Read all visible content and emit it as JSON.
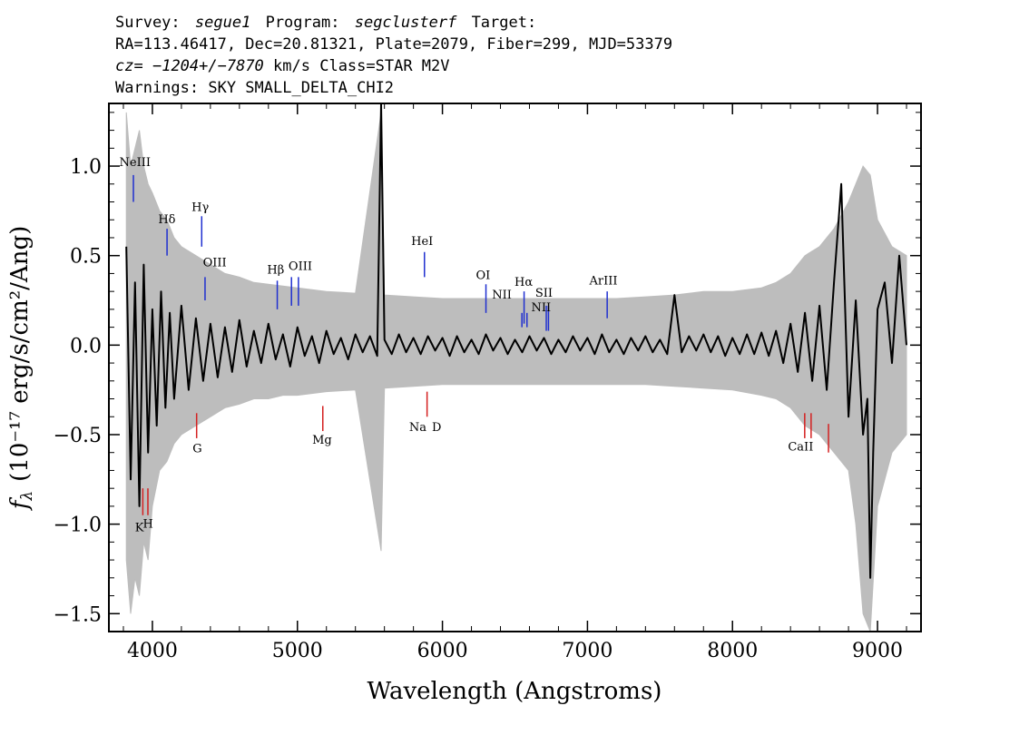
{
  "header": {
    "line1": {
      "survey_label": "Survey:",
      "survey_value": "segue1",
      "program_label": "Program:",
      "program_value": "segclusterf",
      "target_label": "Target:"
    },
    "line2": "RA=113.46417, Dec=20.81321, Plate=2079, Fiber=299, MJD=53379",
    "line3": {
      "cz_label": "cz=",
      "cz_value": "−1204+/−7870",
      "rest": " km/s Class=STAR M2V"
    },
    "line4": "Warnings: SKY SMALL_DELTA_CHI2"
  },
  "chart_data": {
    "type": "line",
    "xlabel": "Wavelength (Angstroms)",
    "ylabel": "f",
    "ylabel_sub": "λ",
    "ylabel_units": "(10⁻¹⁷ erg/s/cm²/Ang)",
    "xlim": [
      3700,
      9300
    ],
    "ylim": [
      -1.6,
      1.35
    ],
    "x_ticks": [
      4000,
      5000,
      6000,
      7000,
      8000,
      9000
    ],
    "y_ticks": [
      -1.5,
      -1.0,
      -0.5,
      0.0,
      0.5,
      1.0
    ],
    "x_tick_labels": [
      "4000",
      "5000",
      "6000",
      "7000",
      "8000",
      "9000"
    ],
    "y_tick_labels": [
      "−1.5",
      "−1.0",
      "−0.5",
      "0.0",
      "0.5",
      "1.0"
    ],
    "grid": false,
    "legend": "none",
    "colors": {
      "flux": "#000000",
      "error_band": "#bdbdbd",
      "emission_marker": "#1f2fd0",
      "absorption_marker": "#d42020"
    },
    "series": [
      {
        "role": "flux",
        "color": "#000000",
        "x": [
          3820,
          3850,
          3880,
          3910,
          3940,
          3970,
          4000,
          4030,
          4060,
          4090,
          4120,
          4150,
          4200,
          4250,
          4300,
          4350,
          4400,
          4450,
          4500,
          4550,
          4600,
          4650,
          4700,
          4750,
          4800,
          4850,
          4900,
          4950,
          5000,
          5050,
          5100,
          5150,
          5200,
          5250,
          5300,
          5350,
          5400,
          5450,
          5500,
          5550,
          5577,
          5600,
          5650,
          5700,
          5750,
          5800,
          5850,
          5900,
          5950,
          6000,
          6050,
          6100,
          6150,
          6200,
          6250,
          6300,
          6350,
          6400,
          6450,
          6500,
          6550,
          6600,
          6650,
          6700,
          6750,
          6800,
          6850,
          6900,
          6950,
          7000,
          7050,
          7100,
          7150,
          7200,
          7250,
          7300,
          7350,
          7400,
          7450,
          7500,
          7550,
          7600,
          7650,
          7700,
          7750,
          7800,
          7850,
          7900,
          7950,
          8000,
          8050,
          8100,
          8150,
          8200,
          8250,
          8300,
          8350,
          8400,
          8450,
          8500,
          8550,
          8600,
          8650,
          8700,
          8750,
          8800,
          8850,
          8900,
          8930,
          8950,
          8970,
          9000,
          9050,
          9100,
          9150,
          9200
        ],
        "y": [
          0.55,
          -0.75,
          0.35,
          -0.9,
          0.45,
          -0.6,
          0.2,
          -0.45,
          0.3,
          -0.35,
          0.18,
          -0.3,
          0.22,
          -0.25,
          0.15,
          -0.2,
          0.12,
          -0.18,
          0.1,
          -0.15,
          0.14,
          -0.12,
          0.08,
          -0.1,
          0.12,
          -0.08,
          0.06,
          -0.12,
          0.1,
          -0.06,
          0.05,
          -0.1,
          0.08,
          -0.05,
          0.04,
          -0.08,
          0.06,
          -0.04,
          0.05,
          -0.06,
          1.35,
          0.03,
          -0.05,
          0.06,
          -0.04,
          0.04,
          -0.05,
          0.05,
          -0.03,
          0.04,
          -0.06,
          0.05,
          -0.04,
          0.03,
          -0.05,
          0.06,
          -0.03,
          0.04,
          -0.05,
          0.03,
          -0.04,
          0.05,
          -0.03,
          0.04,
          -0.05,
          0.03,
          -0.04,
          0.05,
          -0.03,
          0.04,
          -0.05,
          0.06,
          -0.04,
          0.03,
          -0.05,
          0.04,
          -0.03,
          0.05,
          -0.04,
          0.03,
          -0.05,
          0.28,
          -0.04,
          0.05,
          -0.03,
          0.06,
          -0.04,
          0.05,
          -0.06,
          0.04,
          -0.05,
          0.06,
          -0.05,
          0.07,
          -0.06,
          0.08,
          -0.1,
          0.12,
          -0.15,
          0.18,
          -0.2,
          0.22,
          -0.25,
          0.35,
          0.9,
          -0.4,
          0.25,
          -0.5,
          -0.3,
          -1.3,
          -0.6,
          0.2,
          0.35,
          -0.1,
          0.5,
          0.0
        ]
      },
      {
        "role": "error_band",
        "color": "#bdbdbd",
        "x": [
          3820,
          3850,
          3880,
          3910,
          3940,
          3970,
          4000,
          4050,
          4100,
          4150,
          4200,
          4300,
          4400,
          4500,
          4600,
          4700,
          4800,
          4900,
          5000,
          5200,
          5400,
          5577,
          5600,
          5800,
          6000,
          6200,
          6400,
          6600,
          6800,
          7000,
          7200,
          7400,
          7600,
          7800,
          8000,
          8200,
          8300,
          8400,
          8500,
          8600,
          8700,
          8800,
          8850,
          8900,
          8950,
          9000,
          9100,
          9200
        ],
        "lower": [
          -1.2,
          -1.5,
          -1.3,
          -1.4,
          -1.1,
          -1.2,
          -0.9,
          -0.7,
          -0.65,
          -0.55,
          -0.5,
          -0.45,
          -0.4,
          -0.35,
          -0.33,
          -0.3,
          -0.3,
          -0.28,
          -0.28,
          -0.26,
          -0.25,
          -1.15,
          -0.24,
          -0.23,
          -0.22,
          -0.22,
          -0.22,
          -0.22,
          -0.22,
          -0.22,
          -0.22,
          -0.22,
          -0.23,
          -0.24,
          -0.25,
          -0.28,
          -0.3,
          -0.35,
          -0.45,
          -0.5,
          -0.6,
          -0.7,
          -1.0,
          -1.5,
          -1.6,
          -0.9,
          -0.6,
          -0.5
        ],
        "upper": [
          1.3,
          1.0,
          1.1,
          1.2,
          1.0,
          0.9,
          0.85,
          0.75,
          0.7,
          0.6,
          0.55,
          0.5,
          0.45,
          0.4,
          0.38,
          0.35,
          0.34,
          0.33,
          0.32,
          0.3,
          0.29,
          1.3,
          0.28,
          0.27,
          0.26,
          0.26,
          0.26,
          0.26,
          0.26,
          0.26,
          0.26,
          0.27,
          0.28,
          0.3,
          0.3,
          0.32,
          0.35,
          0.4,
          0.5,
          0.55,
          0.65,
          0.8,
          0.9,
          1.0,
          0.95,
          0.7,
          0.55,
          0.5
        ]
      }
    ],
    "emission_lines": [
      {
        "label": "NeIII",
        "wavelength": 3869,
        "y_from": 0.95,
        "y_to": 0.8
      },
      {
        "label": "Hδ",
        "wavelength": 4101,
        "y_from": 0.65,
        "y_to": 0.5
      },
      {
        "label": "Hγ",
        "wavelength": 4340,
        "y_from": 0.72,
        "y_to": 0.55
      },
      {
        "label": "OIII",
        "wavelength": 4363,
        "y_from": 0.38,
        "y_to": 0.25
      },
      {
        "label": "Hβ",
        "wavelength": 4861,
        "y_from": 0.36,
        "y_to": 0.2
      },
      {
        "label": "OIII",
        "wavelength": 4959,
        "y_from": 0.38,
        "y_to": 0.22
      },
      {
        "label": "OIII",
        "wavelength": 5007,
        "y_from": 0.38,
        "y_to": 0.22
      },
      {
        "label": "HeI",
        "wavelength": 5876,
        "y_from": 0.52,
        "y_to": 0.38
      },
      {
        "label": "OI",
        "wavelength": 6300,
        "y_from": 0.34,
        "y_to": 0.18
      },
      {
        "label": "NII",
        "wavelength": 6548,
        "y_from": 0.18,
        "y_to": 0.1
      },
      {
        "label": "Hα",
        "wavelength": 6563,
        "y_from": 0.3,
        "y_to": 0.12
      },
      {
        "label": "NII",
        "wavelength": 6583,
        "y_from": 0.18,
        "y_to": 0.1
      },
      {
        "label": "SII",
        "wavelength": 6716,
        "y_from": 0.22,
        "y_to": 0.08
      },
      {
        "label": "SII",
        "wavelength": 6731,
        "y_from": 0.22,
        "y_to": 0.08
      },
      {
        "label": "ArIII",
        "wavelength": 7136,
        "y_from": 0.3,
        "y_to": 0.15
      }
    ],
    "absorption_lines": [
      {
        "label": "K",
        "wavelength": 3934,
        "y_from": -0.8,
        "y_to": -0.95
      },
      {
        "label": "H",
        "wavelength": 3969,
        "y_from": -0.8,
        "y_to": -0.95
      },
      {
        "label": "G",
        "wavelength": 4305,
        "y_from": -0.38,
        "y_to": -0.52
      },
      {
        "label": "Mg",
        "wavelength": 5175,
        "y_from": -0.34,
        "y_to": -0.48
      },
      {
        "label": "Na",
        "wavelength": 5894,
        "y_from": -0.26,
        "y_to": -0.4
      },
      {
        "label": "CaII",
        "wavelength": 8498,
        "y_from": -0.38,
        "y_to": -0.52
      },
      {
        "label": "CaII",
        "wavelength": 8542,
        "y_from": -0.38,
        "y_to": -0.52
      },
      {
        "label": "CaII",
        "wavelength": 8662,
        "y_from": -0.44,
        "y_to": -0.6
      }
    ],
    "line_annotations": [
      {
        "text": "NeIII",
        "x": 3880,
        "y": 1.0
      },
      {
        "text": "Hδ",
        "x": 4100,
        "y": 0.68
      },
      {
        "text": "Hγ",
        "x": 4330,
        "y": 0.75
      },
      {
        "text": "OIII",
        "x": 4430,
        "y": 0.44
      },
      {
        "text": "Hβ",
        "x": 4850,
        "y": 0.4
      },
      {
        "text": "OIII",
        "x": 5020,
        "y": 0.42
      },
      {
        "text": "HeI",
        "x": 5860,
        "y": 0.56
      },
      {
        "text": "OI",
        "x": 6280,
        "y": 0.37
      },
      {
        "text": "NII",
        "x": 6410,
        "y": 0.26
      },
      {
        "text": "Hα",
        "x": 6560,
        "y": 0.33
      },
      {
        "text": "SII",
        "x": 6700,
        "y": 0.27
      },
      {
        "text": "NII",
        "x": 6680,
        "y": 0.19
      },
      {
        "text": "ArIII",
        "x": 7110,
        "y": 0.34
      },
      {
        "text": "K",
        "x": 3910,
        "y": -1.04
      },
      {
        "text": "H",
        "x": 3970,
        "y": -1.02
      },
      {
        "text": "G",
        "x": 4310,
        "y": -0.6
      },
      {
        "text": "Mg",
        "x": 5170,
        "y": -0.55
      },
      {
        "text": "Na",
        "x": 5830,
        "y": -0.48
      },
      {
        "text": "D",
        "x": 5960,
        "y": -0.48
      },
      {
        "text": "CaII",
        "x": 8470,
        "y": -0.59
      }
    ]
  }
}
